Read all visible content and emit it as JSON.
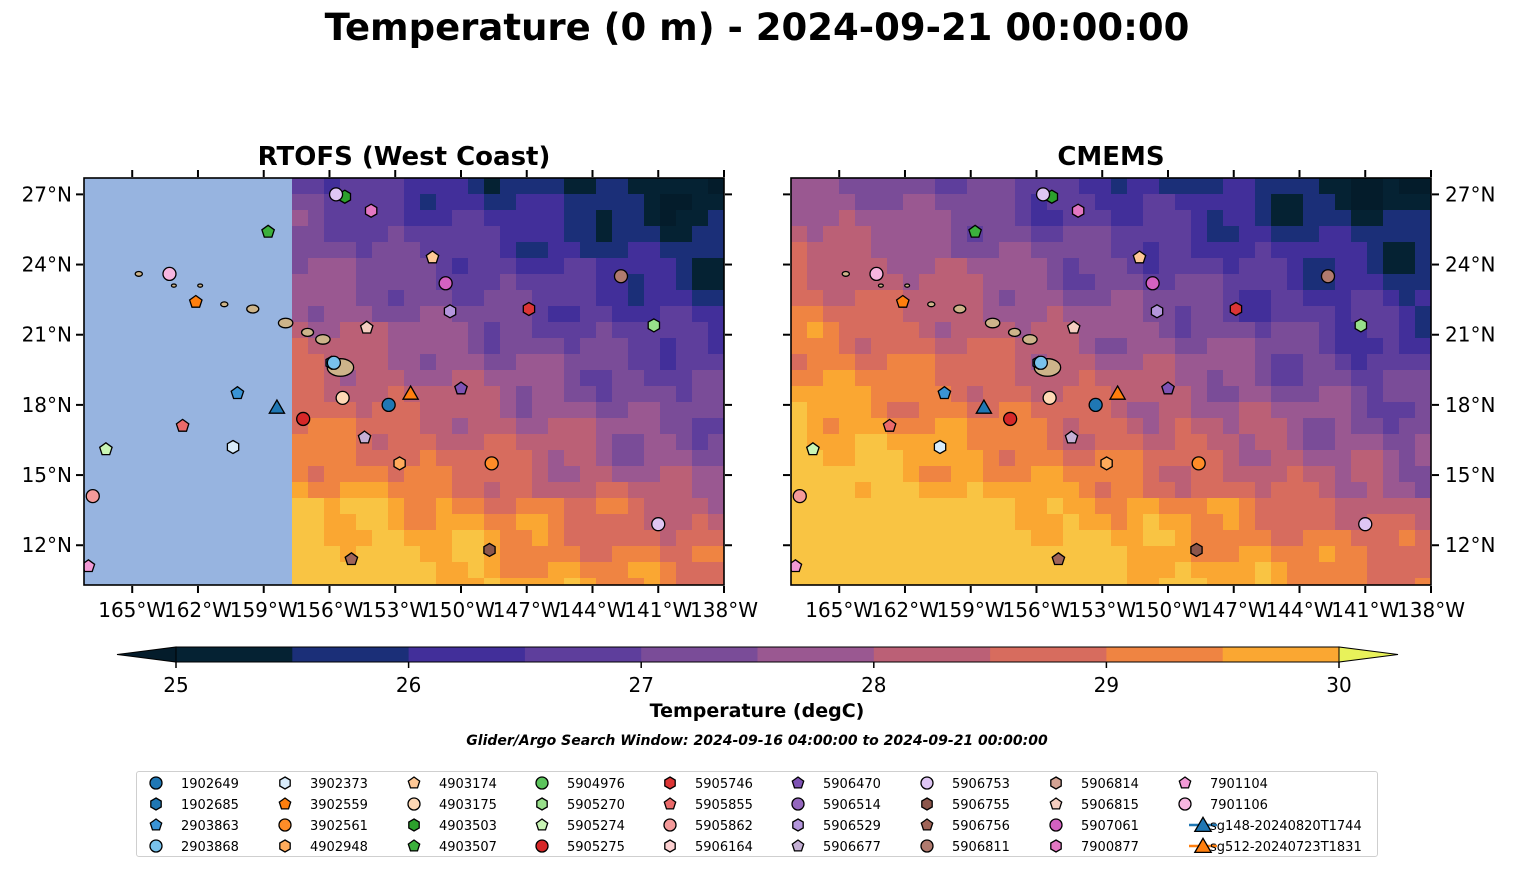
{
  "title": "Temperature (0 m) - 2024-09-21 00:00:00",
  "panels": [
    {
      "title": "RTOFS (West Coast)"
    },
    {
      "title": "CMEMS"
    }
  ],
  "colorbar": {
    "label": "Temperature (degC)",
    "ticks": [
      "25",
      "26",
      "27",
      "28",
      "29",
      "30"
    ],
    "levels": [
      25,
      25.5,
      26,
      26.5,
      27,
      27.5,
      28,
      28.5,
      29,
      29.5,
      30
    ],
    "colors": [
      "#052233",
      "#1b2f78",
      "#422f9a",
      "#5e3e9c",
      "#7a4c98",
      "#9a5891",
      "#bb6076",
      "#d76c5e",
      "#ef8442",
      "#faa732",
      "#f9c443"
    ],
    "under_color": "#041c2b",
    "over_color": "#e8f25a",
    "extend": "both"
  },
  "search_window": "Glider/Argo Search Window: 2024-09-16 04:00:00 to 2024-09-21 00:00:00",
  "chart_data": {
    "type": "map",
    "xlim": [
      -167.2,
      -138
    ],
    "ylim": [
      10.3,
      27.7
    ],
    "x_ticks": [
      -165,
      -162,
      -159,
      -156,
      -153,
      -150,
      -147,
      -144,
      -141,
      -138
    ],
    "x_tick_labels": [
      "165°W",
      "162°W",
      "159°W",
      "156°W",
      "153°W",
      "150°W",
      "147°W",
      "144°W",
      "141°W",
      "138°W"
    ],
    "y_ticks": [
      12,
      15,
      18,
      21,
      24,
      27
    ],
    "y_tick_labels": [
      "12°N",
      "15°N",
      "18°N",
      "21°N",
      "24°N",
      "27°N"
    ],
    "rtofs_data_west_edge_lon": -158.0,
    "rtofs_missing_color": "#97b4e0",
    "land_color": "#cdb48a",
    "legend": [
      {
        "id": "1902649",
        "marker": "circle",
        "color": "#1f77b4"
      },
      {
        "id": "1902685",
        "marker": "hexagon",
        "color": "#1f77b4"
      },
      {
        "id": "2903863",
        "marker": "pentagon",
        "color": "#3a94d6"
      },
      {
        "id": "2903868",
        "marker": "circle",
        "color": "#79c2ec"
      },
      {
        "id": "3902373",
        "marker": "hexagon",
        "color": "#d9ecfb"
      },
      {
        "id": "3902559",
        "marker": "pentagon",
        "color": "#ff7f0e"
      },
      {
        "id": "3902561",
        "marker": "circle",
        "color": "#ff8c28"
      },
      {
        "id": "4902948",
        "marker": "hexagon",
        "color": "#ffab5b"
      },
      {
        "id": "4903174",
        "marker": "pentagon",
        "color": "#ffc896"
      },
      {
        "id": "4903175",
        "marker": "circle",
        "color": "#fed8b5"
      },
      {
        "id": "4903503",
        "marker": "hexagon",
        "color": "#2ca02c"
      },
      {
        "id": "4903507",
        "marker": "pentagon",
        "color": "#3cb03c"
      },
      {
        "id": "5904976",
        "marker": "circle",
        "color": "#5cc45c"
      },
      {
        "id": "5905270",
        "marker": "hexagon",
        "color": "#98df8a"
      },
      {
        "id": "5905274",
        "marker": "pentagon",
        "color": "#c9f5b5"
      },
      {
        "id": "5905275",
        "marker": "circle",
        "color": "#d62728"
      },
      {
        "id": "5905746",
        "marker": "hexagon",
        "color": "#dc3535"
      },
      {
        "id": "5905855",
        "marker": "pentagon",
        "color": "#ea6a6a"
      },
      {
        "id": "5905862",
        "marker": "circle",
        "color": "#f49a9a"
      },
      {
        "id": "5906164",
        "marker": "hexagon",
        "color": "#fcd0d0"
      },
      {
        "id": "5906470",
        "marker": "pentagon",
        "color": "#7e52b4"
      },
      {
        "id": "5906514",
        "marker": "circle",
        "color": "#9467bd"
      },
      {
        "id": "5906529",
        "marker": "hexagon",
        "color": "#b496dc"
      },
      {
        "id": "5906677",
        "marker": "pentagon",
        "color": "#c5b0d5"
      },
      {
        "id": "5906753",
        "marker": "circle",
        "color": "#dfc6f4"
      },
      {
        "id": "5906755",
        "marker": "hexagon",
        "color": "#8c564b"
      },
      {
        "id": "5906756",
        "marker": "pentagon",
        "color": "#a06458"
      },
      {
        "id": "5906811",
        "marker": "circle",
        "color": "#b07a6e"
      },
      {
        "id": "5906814",
        "marker": "hexagon",
        "color": "#d4a394"
      },
      {
        "id": "5906815",
        "marker": "pentagon",
        "color": "#f4cdc0"
      },
      {
        "id": "5907061",
        "marker": "circle",
        "color": "#d361c0"
      },
      {
        "id": "7900877",
        "marker": "hexagon",
        "color": "#e377c2"
      },
      {
        "id": "7901104",
        "marker": "pentagon",
        "color": "#f29ad6"
      },
      {
        "id": "7901106",
        "marker": "circle",
        "color": "#f7b6e0"
      },
      {
        "id": "sg148-20240820T1744",
        "marker": "triangle-line",
        "color": "#1f77b4"
      },
      {
        "id": "sg512-20240723T1831",
        "marker": "triangle-line",
        "color": "#ff7f0e"
      }
    ],
    "markers": [
      {
        "id": "1902649",
        "lon": -153.3,
        "lat": 18.0
      },
      {
        "id": "1902685",
        "lon": -155.9,
        "lat": 19.8
      },
      {
        "id": "2903863",
        "lon": -160.2,
        "lat": 18.5
      },
      {
        "id": "2903868",
        "lon": -155.8,
        "lat": 19.8
      },
      {
        "id": "3902373",
        "lon": -160.4,
        "lat": 16.2
      },
      {
        "id": "3902559",
        "lon": -162.1,
        "lat": 22.4
      },
      {
        "id": "3902561",
        "lon": -148.6,
        "lat": 15.5
      },
      {
        "id": "4902948",
        "lon": -152.8,
        "lat": 15.5
      },
      {
        "id": "4903174",
        "lon": -151.3,
        "lat": 24.3
      },
      {
        "id": "4903175",
        "lon": -155.4,
        "lat": 18.3
      },
      {
        "id": "4903503",
        "lon": -155.3,
        "lat": 26.9
      },
      {
        "id": "4903507",
        "lon": -158.8,
        "lat": 25.4
      },
      {
        "id": "5905270",
        "lon": -141.2,
        "lat": 21.4
      },
      {
        "id": "5905274",
        "lon": -166.2,
        "lat": 16.1
      },
      {
        "id": "5905275",
        "lon": -157.2,
        "lat": 17.4
      },
      {
        "id": "5905746",
        "lon": -146.9,
        "lat": 22.1
      },
      {
        "id": "5905855",
        "lon": -162.7,
        "lat": 17.1
      },
      {
        "id": "5905862",
        "lon": -166.8,
        "lat": 14.1
      },
      {
        "id": "5906470",
        "lon": -150.0,
        "lat": 18.7
      },
      {
        "id": "5906529",
        "lon": -150.5,
        "lat": 22.0
      },
      {
        "id": "5906677",
        "lon": -154.4,
        "lat": 16.6
      },
      {
        "id": "5906753",
        "lon": -141.0,
        "lat": 12.9
      },
      {
        "id": "5906753",
        "lon": -155.7,
        "lat": 27.0
      },
      {
        "id": "5906755",
        "lon": -148.7,
        "lat": 11.8
      },
      {
        "id": "5906756",
        "lon": -155.0,
        "lat": 11.4
      },
      {
        "id": "5906811",
        "lon": -142.7,
        "lat": 23.5
      },
      {
        "id": "5906815",
        "lon": -154.3,
        "lat": 21.3
      },
      {
        "id": "5907061",
        "lon": -150.7,
        "lat": 23.2
      },
      {
        "id": "7900877",
        "lon": -154.1,
        "lat": 26.3
      },
      {
        "id": "7901104",
        "lon": -167.0,
        "lat": 11.1
      },
      {
        "id": "7901106",
        "lon": -163.3,
        "lat": 23.6
      },
      {
        "id": "sg148-20240820T1744",
        "lon": -158.4,
        "lat": 17.9
      },
      {
        "id": "sg512-20240723T1831",
        "lon": -152.3,
        "lat": 18.5
      }
    ]
  }
}
